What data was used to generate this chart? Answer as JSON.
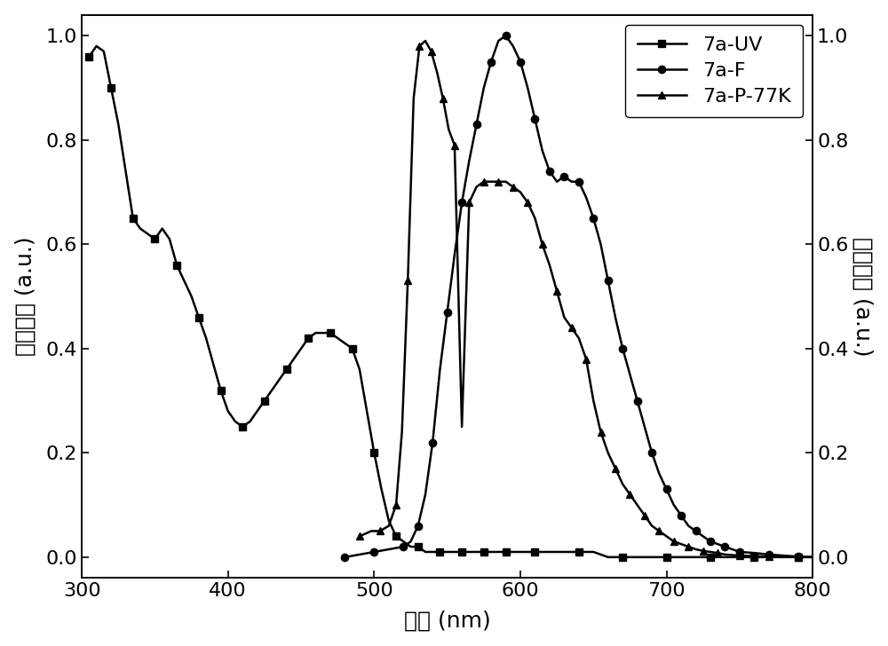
{
  "title": "",
  "xlabel": "波长 (nm)",
  "ylabel_left": "吸收强度 (a.u.)",
  "ylabel_right": "发光强度 (a.u.)",
  "xlim": [
    300,
    800
  ],
  "ylim_left": [
    -0.04,
    1.04
  ],
  "ylim_right": [
    -0.04,
    1.04
  ],
  "background_color": "#ffffff",
  "uv_x": [
    305,
    310,
    315,
    320,
    325,
    330,
    335,
    340,
    345,
    350,
    355,
    360,
    365,
    370,
    375,
    380,
    385,
    390,
    395,
    400,
    405,
    410,
    415,
    420,
    425,
    430,
    435,
    440,
    445,
    450,
    455,
    460,
    465,
    470,
    475,
    480,
    485,
    490,
    495,
    500,
    505,
    510,
    515,
    520,
    525,
    530,
    535,
    540,
    545,
    550,
    555,
    560,
    565,
    570,
    575,
    580,
    585,
    590,
    595,
    600,
    610,
    620,
    630,
    640,
    650,
    660,
    670,
    680,
    690,
    700,
    710,
    720,
    730,
    740,
    750,
    760,
    770,
    780,
    790,
    800
  ],
  "uv_y": [
    0.96,
    0.98,
    0.97,
    0.9,
    0.83,
    0.74,
    0.65,
    0.63,
    0.62,
    0.61,
    0.63,
    0.61,
    0.56,
    0.53,
    0.5,
    0.46,
    0.42,
    0.37,
    0.32,
    0.28,
    0.26,
    0.25,
    0.26,
    0.28,
    0.3,
    0.32,
    0.34,
    0.36,
    0.38,
    0.4,
    0.42,
    0.43,
    0.43,
    0.43,
    0.42,
    0.41,
    0.4,
    0.36,
    0.28,
    0.2,
    0.13,
    0.07,
    0.04,
    0.03,
    0.02,
    0.02,
    0.01,
    0.01,
    0.01,
    0.01,
    0.01,
    0.01,
    0.01,
    0.01,
    0.01,
    0.01,
    0.01,
    0.01,
    0.01,
    0.01,
    0.01,
    0.01,
    0.01,
    0.01,
    0.01,
    0.0,
    0.0,
    0.0,
    0.0,
    0.0,
    0.0,
    0.0,
    0.0,
    0.0,
    0.0,
    0.0,
    0.0,
    0.0,
    0.0,
    0.0
  ],
  "fl_x": [
    480,
    490,
    500,
    510,
    520,
    525,
    530,
    535,
    540,
    545,
    550,
    555,
    560,
    565,
    570,
    575,
    580,
    585,
    590,
    595,
    600,
    605,
    610,
    615,
    620,
    625,
    630,
    635,
    640,
    645,
    650,
    655,
    660,
    665,
    670,
    675,
    680,
    685,
    690,
    695,
    700,
    705,
    710,
    715,
    720,
    725,
    730,
    735,
    740,
    745,
    750,
    760,
    770,
    780,
    790,
    800
  ],
  "fl_y": [
    0.0,
    0.005,
    0.01,
    0.015,
    0.02,
    0.03,
    0.06,
    0.12,
    0.22,
    0.36,
    0.47,
    0.58,
    0.68,
    0.76,
    0.83,
    0.9,
    0.95,
    0.99,
    1.0,
    0.98,
    0.95,
    0.9,
    0.84,
    0.78,
    0.74,
    0.72,
    0.73,
    0.72,
    0.72,
    0.69,
    0.65,
    0.6,
    0.53,
    0.46,
    0.4,
    0.35,
    0.3,
    0.25,
    0.2,
    0.16,
    0.13,
    0.1,
    0.08,
    0.06,
    0.05,
    0.04,
    0.03,
    0.025,
    0.02,
    0.015,
    0.01,
    0.008,
    0.005,
    0.003,
    0.001,
    0.0
  ],
  "ph_x": [
    490,
    498,
    504,
    510,
    515,
    519,
    523,
    527,
    531,
    535,
    539,
    543,
    547,
    551,
    555,
    560,
    565,
    570,
    575,
    580,
    585,
    590,
    595,
    600,
    605,
    610,
    615,
    620,
    625,
    630,
    635,
    640,
    645,
    650,
    655,
    660,
    665,
    670,
    675,
    680,
    685,
    690,
    695,
    700,
    705,
    710,
    715,
    720,
    725,
    730,
    735,
    740,
    750,
    760,
    770,
    780,
    790,
    800
  ],
  "ph_y": [
    0.04,
    0.05,
    0.05,
    0.06,
    0.1,
    0.24,
    0.53,
    0.88,
    0.98,
    0.99,
    0.97,
    0.93,
    0.88,
    0.82,
    0.79,
    0.25,
    0.68,
    0.71,
    0.72,
    0.72,
    0.72,
    0.72,
    0.71,
    0.7,
    0.68,
    0.65,
    0.6,
    0.56,
    0.51,
    0.46,
    0.44,
    0.42,
    0.38,
    0.3,
    0.24,
    0.2,
    0.17,
    0.14,
    0.12,
    0.1,
    0.08,
    0.06,
    0.05,
    0.04,
    0.03,
    0.025,
    0.02,
    0.015,
    0.012,
    0.01,
    0.008,
    0.005,
    0.003,
    0.002,
    0.001,
    0.001,
    0.0,
    0.0
  ],
  "legend_labels": [
    "7a-UV",
    "7a-F",
    "7a-P-77K"
  ],
  "marker_size": 6,
  "marker_every_uv": 3,
  "marker_every_fl": 2,
  "marker_every_ph": 2,
  "line_width": 1.8,
  "tick_fontsize": 16,
  "label_fontsize": 18,
  "legend_fontsize": 16
}
